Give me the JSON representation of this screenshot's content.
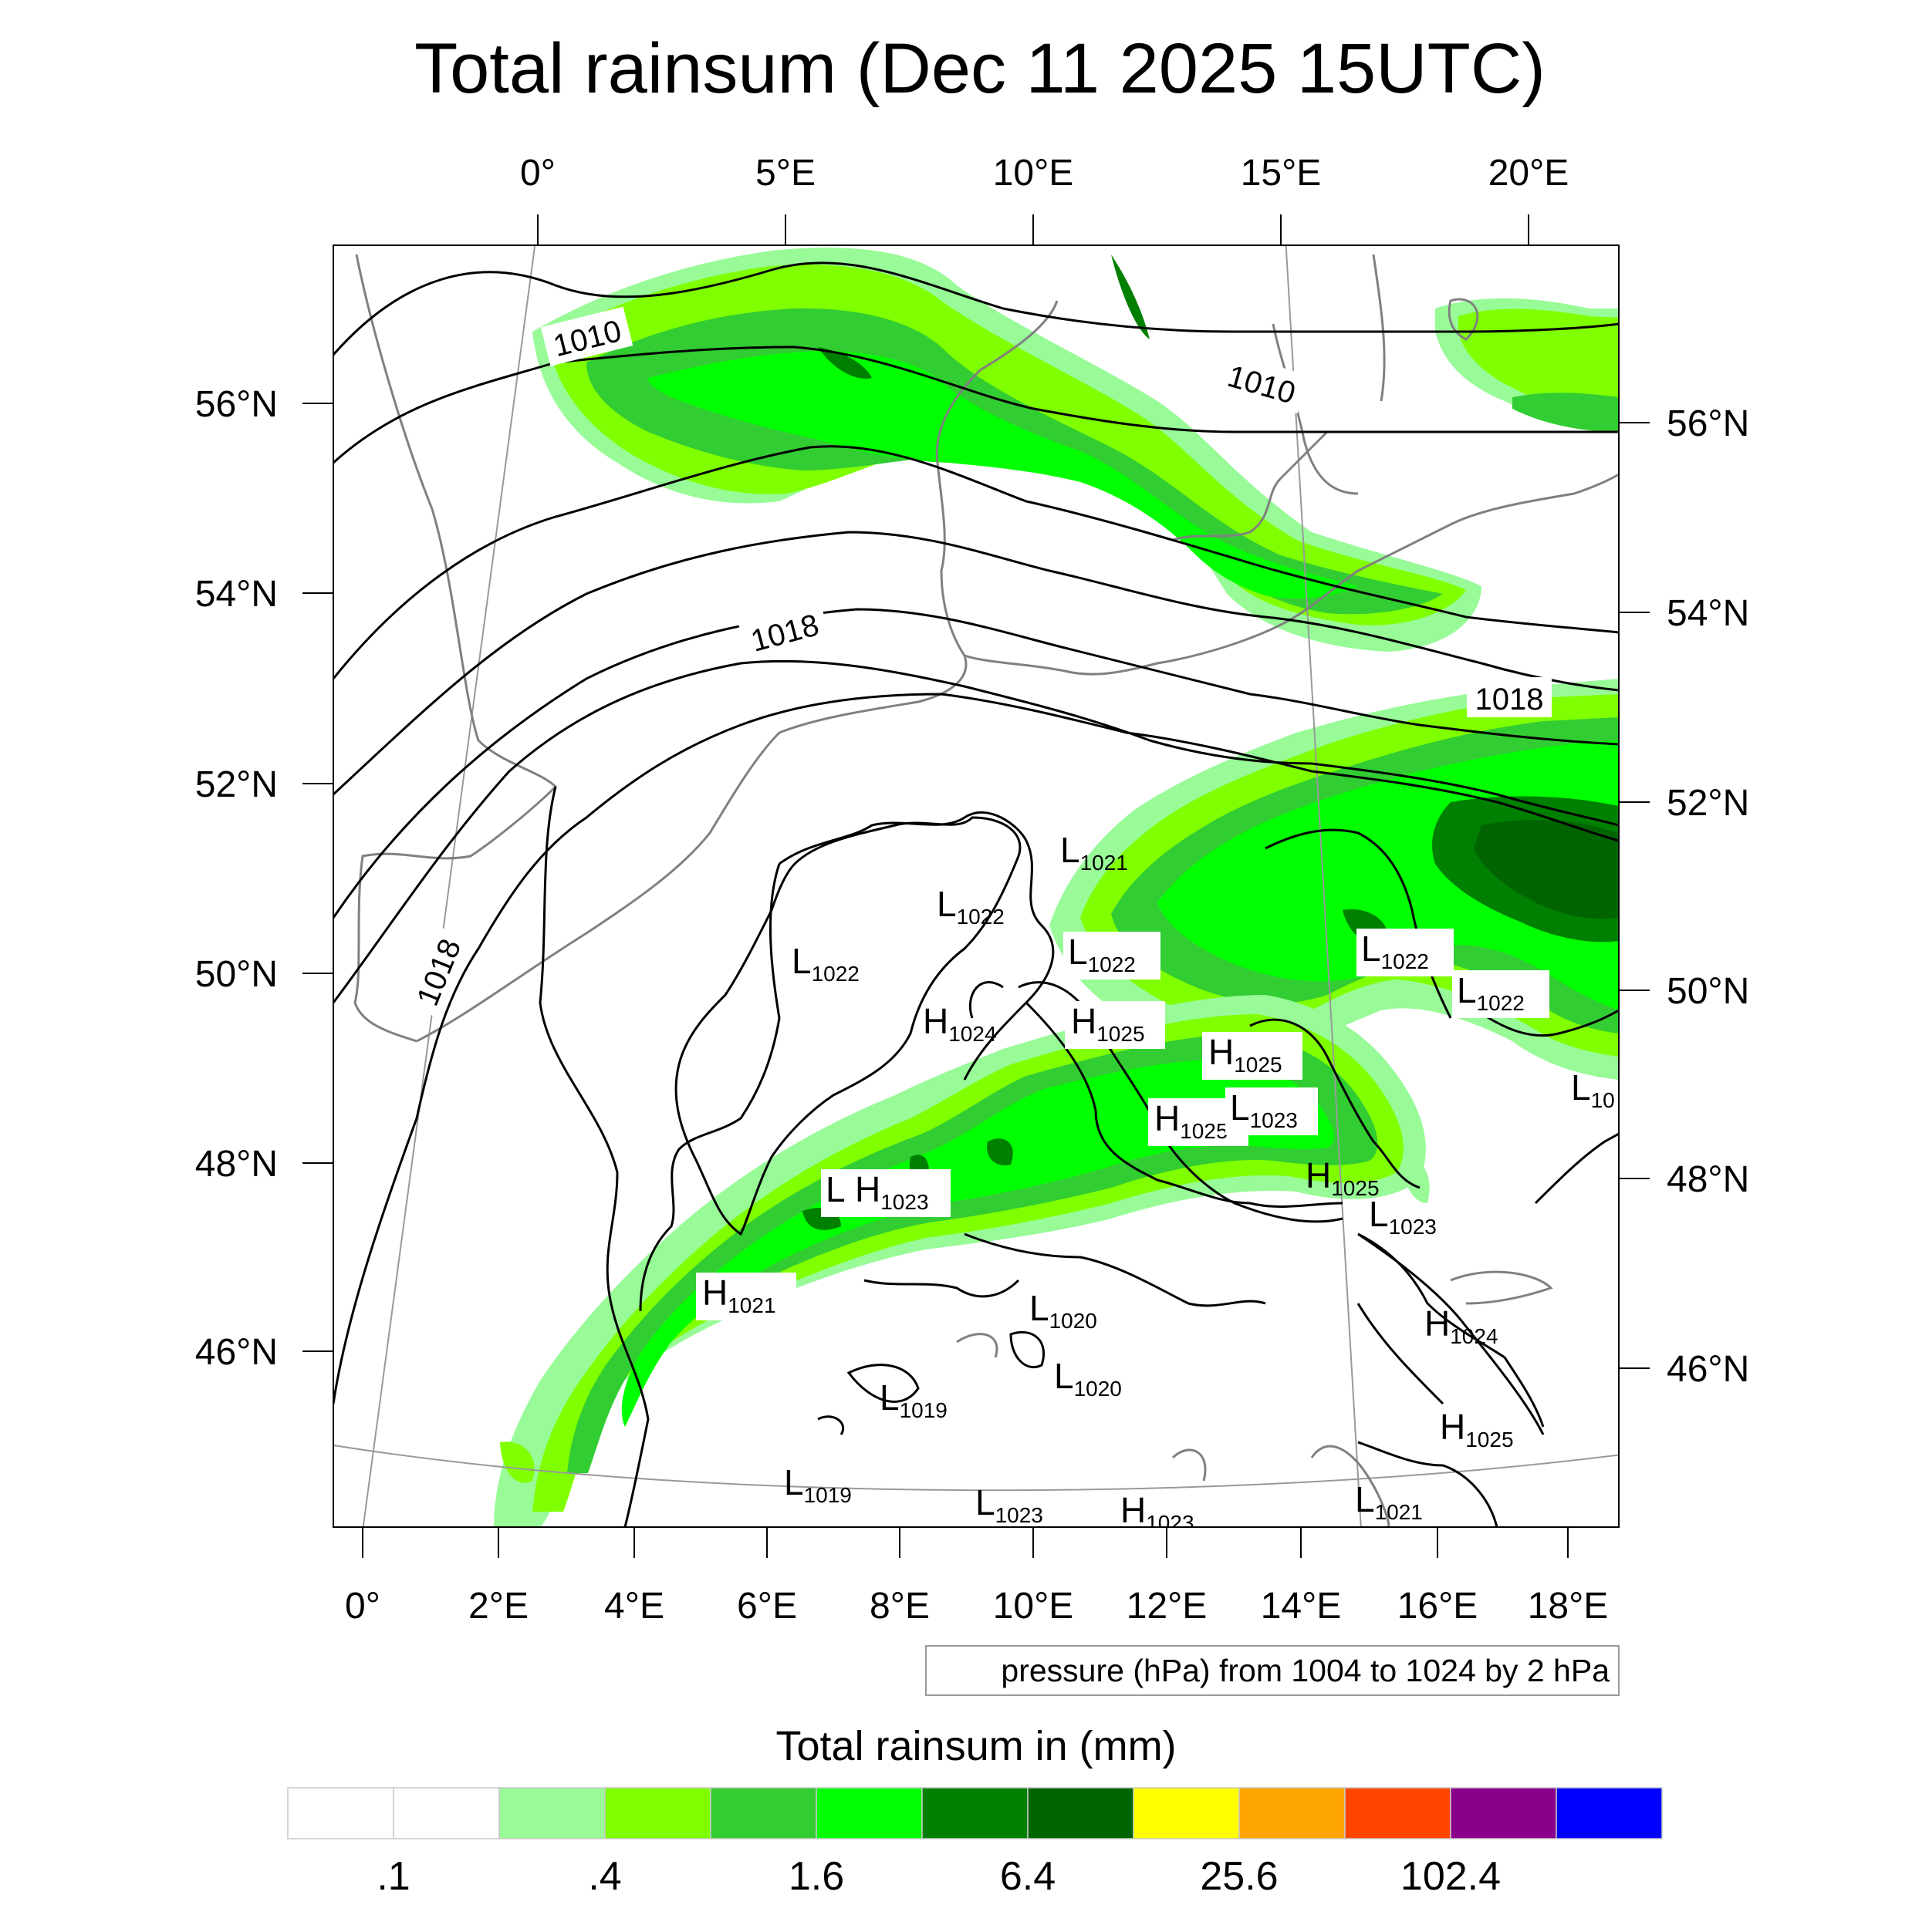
{
  "title": "Total rainsum (Dec 11 2025 15UTC)",
  "axes": {
    "top_lon": [
      "0°",
      "5°E",
      "10°E",
      "15°E",
      "20°E"
    ],
    "bottom_lon": [
      "0°",
      "2°E",
      "4°E",
      "6°E",
      "8°E",
      "10°E",
      "12°E",
      "14°E",
      "16°E",
      "18°E"
    ],
    "left_lat": [
      "56°N",
      "54°N",
      "52°N",
      "50°N",
      "48°N",
      "46°N"
    ],
    "right_lat": [
      "56°N",
      "54°N",
      "52°N",
      "50°N",
      "48°N",
      "46°N"
    ]
  },
  "isobar_labels": [
    "1010",
    "1010",
    "1018",
    "1018",
    "1018"
  ],
  "pressure_centers": [
    {
      "letter": "L",
      "value": "1021"
    },
    {
      "letter": "L",
      "value": "1022"
    },
    {
      "letter": "L",
      "value": "1022"
    },
    {
      "letter": "L",
      "value": "1022"
    },
    {
      "letter": "L",
      "value": "1022"
    },
    {
      "letter": "L",
      "value": "1022"
    },
    {
      "letter": "H",
      "value": "1024"
    },
    {
      "letter": "H",
      "value": "1025"
    },
    {
      "letter": "H",
      "value": "1025"
    },
    {
      "letter": "H",
      "value": "1025"
    },
    {
      "letter": "L",
      "value": "1023"
    },
    {
      "letter": "L",
      "value": ""
    },
    {
      "letter": "H",
      "value": "1023"
    },
    {
      "letter": "H",
      "value": "1025"
    },
    {
      "letter": "L",
      "value": "1023"
    },
    {
      "letter": "H",
      "value": "1021"
    },
    {
      "letter": "L",
      "value": "1020"
    },
    {
      "letter": "L",
      "value": "1020"
    },
    {
      "letter": "L",
      "value": "1019"
    },
    {
      "letter": "H",
      "value": "1024"
    },
    {
      "letter": "H",
      "value": "1025"
    },
    {
      "letter": "L",
      "value": "1019"
    },
    {
      "letter": "L",
      "value": "1023"
    },
    {
      "letter": "H",
      "value": "1023"
    },
    {
      "letter": "L",
      "value": "1021"
    },
    {
      "letter": "L",
      "value": "10"
    }
  ],
  "contour_info": "pressure (hPa) from 1004 to 1024 by 2 hPa",
  "colorbar": {
    "title": "Total rainsum in (mm)",
    "colors": [
      "#ffffff",
      "#ffffff",
      "#98fb98",
      "#7fff00",
      "#32cd32",
      "#00ff00",
      "#008000",
      "#006400",
      "#ffff00",
      "#ffa500",
      "#ff4500",
      "#8b008b",
      "#0000ff"
    ],
    "labels": [
      ".1",
      ".4",
      "1.6",
      "6.4",
      "25.6",
      "102.4"
    ]
  }
}
